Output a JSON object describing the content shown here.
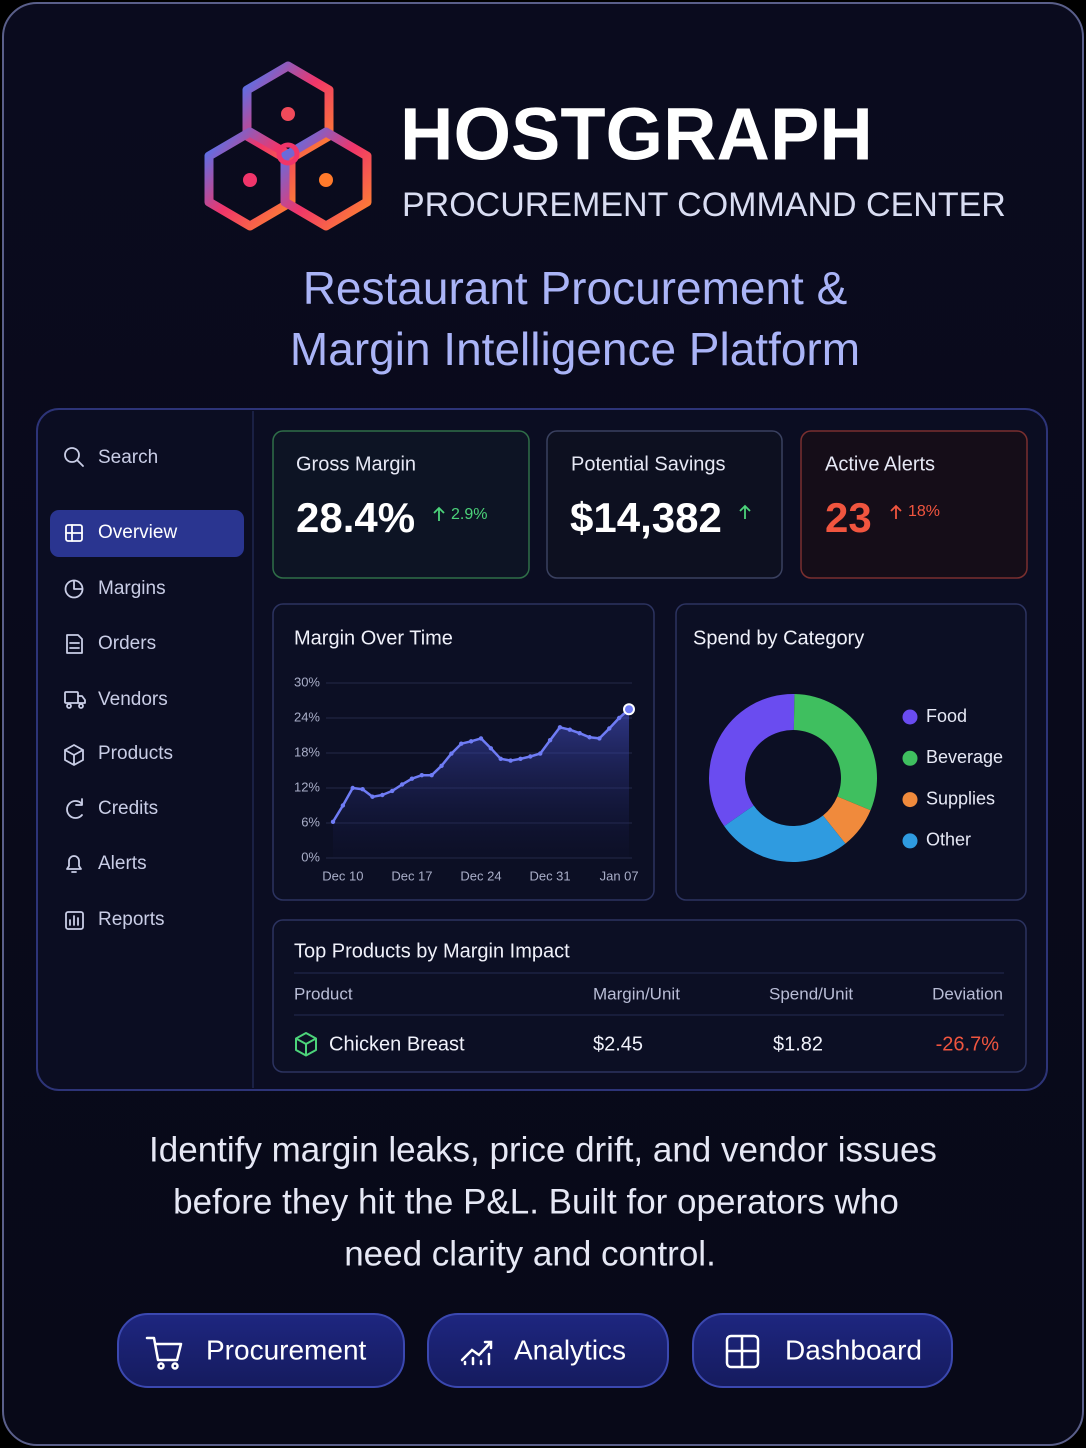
{
  "header": {
    "brand": "HOSTGRAPH",
    "tagline": "PROCUREMENT COMMAND CENTER",
    "headline": [
      "Restaurant Procurement &",
      "Margin Intelligence Platform"
    ]
  },
  "sidebar": {
    "search": "Search",
    "items": [
      "Overview",
      "Margins",
      "Orders",
      "Vendors",
      "Products",
      "Credits",
      "Alerts",
      "Reports"
    ]
  },
  "kpis": [
    {
      "label": "Gross Margin",
      "value": "28.4%",
      "change": "2.9%"
    },
    {
      "label": "Potential Savings",
      "value": "$14,382"
    },
    {
      "label": "Active Alerts",
      "value": "23",
      "change": "18%"
    }
  ],
  "chart_data": [
    {
      "type": "line",
      "title": "Margin Over Time",
      "categories": [
        null,
        "Dec 10",
        null,
        null,
        null,
        null,
        null,
        null,
        "Dec 17",
        null,
        null,
        null,
        null,
        null,
        null,
        "Dec 24",
        null,
        null,
        null,
        null,
        null,
        null,
        "Dec 31",
        null,
        null,
        null,
        null,
        null,
        null,
        "Jan 07",
        null
      ],
      "values": [
        6.2,
        9.0,
        12.0,
        11.8,
        10.5,
        10.8,
        11.5,
        12.6,
        13.6,
        14.2,
        14.2,
        15.8,
        17.9,
        19.6,
        20.0,
        20.5,
        18.8,
        17.0,
        16.7,
        17.0,
        17.4,
        17.9,
        20.2,
        22.4,
        22.0,
        21.4,
        20.7,
        20.5,
        22.2,
        24.0,
        25.5
      ],
      "color": "#6f7cf5",
      "ylim": [
        0,
        30
      ],
      "yticks": [
        {
          "value": 0,
          "label": "0%"
        },
        {
          "value": 6,
          "label": "6%"
        },
        {
          "value": 12,
          "label": "12%"
        },
        {
          "value": 18,
          "label": "18%"
        },
        {
          "value": 24,
          "label": "24%"
        },
        {
          "value": 30,
          "label": "30%"
        }
      ],
      "grid": true
    },
    {
      "type": "pie",
      "title": "Spend by Category",
      "categories": [
        "Food",
        "Beverage",
        "Supplies",
        "Other"
      ],
      "values": [
        35,
        31,
        8,
        26
      ],
      "colors": [
        "#6a4cf0",
        "#3fbf5f",
        "#f08a3c",
        "#2f9be0"
      ]
    }
  ],
  "table": {
    "title": "Top Products by Margin Impact",
    "columns": [
      "Product",
      "Margin/Unit",
      "Spend/Unit",
      "Deviation"
    ],
    "rows": [
      [
        "Chicken Breast",
        "$2.45",
        "$1.82",
        "-26.7%"
      ]
    ]
  },
  "description": [
    "Identify margin leaks, price drift, and vendor issues",
    "before they hit the P&L. Built for operators who",
    "need clarity and control."
  ],
  "buttons": [
    "Procurement",
    "Analytics",
    "Dashboard"
  ]
}
